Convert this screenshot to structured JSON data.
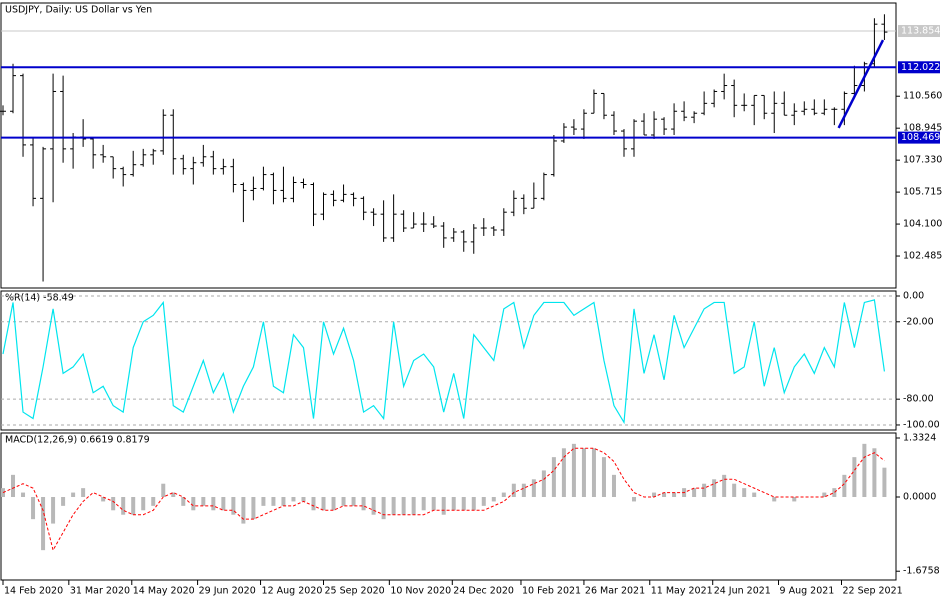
{
  "chart_data": [
    {
      "type": "ohlc",
      "title": "USDJPY, Daily:  US Dollar vs Yen",
      "color": "#000000",
      "x": [
        "2020-02-14",
        "2020-02-21",
        "2020-02-28",
        "2020-03-06",
        "2020-03-13",
        "2020-03-20",
        "2020-03-27",
        "2020-04-03",
        "2020-04-10",
        "2020-04-17",
        "2020-04-24",
        "2020-05-01",
        "2020-05-08",
        "2020-05-15",
        "2020-05-22",
        "2020-05-29",
        "2020-06-05",
        "2020-06-12",
        "2020-06-19",
        "2020-06-26",
        "2020-07-03",
        "2020-07-10",
        "2020-07-17",
        "2020-07-24",
        "2020-07-31",
        "2020-08-07",
        "2020-08-14",
        "2020-08-21",
        "2020-08-28",
        "2020-09-04",
        "2020-09-11",
        "2020-09-18",
        "2020-09-25",
        "2020-10-02",
        "2020-10-09",
        "2020-10-16",
        "2020-10-23",
        "2020-10-30",
        "2020-11-06",
        "2020-11-13",
        "2020-11-20",
        "2020-11-27",
        "2020-12-04",
        "2020-12-11",
        "2020-12-18",
        "2020-12-25",
        "2021-01-01",
        "2021-01-08",
        "2021-01-15",
        "2021-01-22",
        "2021-01-29",
        "2021-02-05",
        "2021-02-12",
        "2021-02-19",
        "2021-02-26",
        "2021-03-05",
        "2021-03-12",
        "2021-03-19",
        "2021-03-26",
        "2021-04-02",
        "2021-04-09",
        "2021-04-16",
        "2021-04-23",
        "2021-04-30",
        "2021-05-07",
        "2021-05-14",
        "2021-05-21",
        "2021-05-28",
        "2021-06-04",
        "2021-06-11",
        "2021-06-18",
        "2021-06-25",
        "2021-07-02",
        "2021-07-09",
        "2021-07-16",
        "2021-07-23",
        "2021-07-30",
        "2021-08-06",
        "2021-08-13",
        "2021-08-20",
        "2021-08-27",
        "2021-09-03",
        "2021-09-10",
        "2021-09-17",
        "2021-09-24",
        "2021-10-01",
        "2021-10-08",
        "2021-10-15",
        "2021-10-22"
      ],
      "open": [
        109.8,
        109.8,
        111.6,
        108.1,
        105.4,
        107.9,
        110.8,
        107.9,
        108.5,
        108.4,
        107.6,
        107.5,
        106.9,
        106.6,
        107.1,
        107.6,
        107.8,
        109.6,
        107.4,
        106.9,
        107.2,
        107.5,
        106.9,
        107.0,
        106.1,
        105.8,
        105.9,
        106.6,
        105.8,
        105.4,
        106.2,
        106.1,
        104.6,
        105.6,
        105.3,
        105.6,
        105.4,
        104.7,
        104.6,
        103.4,
        104.6,
        103.9,
        104.1,
        104.1,
        104.0,
        103.4,
        103.7,
        103.2,
        103.9,
        103.9,
        103.8,
        104.7,
        105.4,
        104.9,
        105.4,
        106.6,
        108.3,
        109.0,
        108.9,
        109.7,
        110.7,
        109.6,
        108.8,
        107.9,
        109.3,
        108.6,
        109.4,
        108.9,
        109.8,
        109.5,
        109.7,
        110.2,
        110.8,
        111.1,
        110.1,
        110.1,
        110.6,
        109.7,
        110.2,
        109.6,
        109.8,
        109.9,
        109.7,
        109.9,
        109.9,
        110.7,
        111.1,
        112.2,
        114.2
      ],
      "high": [
        110.1,
        112.2,
        111.7,
        108.5,
        108.0,
        111.7,
        111.6,
        108.7,
        109.4,
        108.5,
        108.1,
        107.5,
        107.0,
        107.8,
        107.9,
        107.9,
        109.9,
        109.9,
        107.6,
        107.5,
        108.1,
        107.8,
        107.4,
        107.4,
        106.2,
        106.5,
        107.0,
        106.7,
        107.0,
        106.5,
        106.4,
        106.2,
        105.7,
        105.8,
        106.1,
        105.7,
        105.5,
        104.9,
        105.3,
        105.6,
        104.8,
        104.7,
        104.7,
        104.5,
        104.2,
        103.9,
        103.8,
        104.1,
        104.4,
        104.0,
        104.9,
        105.8,
        105.6,
        106.2,
        106.7,
        108.6,
        109.2,
        109.4,
        109.9,
        110.9,
        110.7,
        109.8,
        108.9,
        109.4,
        109.7,
        109.8,
        109.5,
        110.2,
        110.3,
        109.8,
        110.8,
        110.9,
        111.7,
        111.4,
        110.7,
        110.6,
        110.6,
        110.8,
        110.8,
        110.2,
        110.3,
        110.4,
        110.4,
        110.0,
        110.8,
        112.1,
        112.3,
        114.5,
        114.7
      ],
      "low": [
        109.6,
        109.7,
        107.5,
        105.0,
        101.2,
        105.2,
        107.2,
        106.9,
        108.0,
        106.9,
        107.2,
        106.4,
        106.0,
        106.5,
        107.0,
        107.1,
        107.6,
        106.6,
        106.6,
        106.1,
        107.0,
        106.6,
        106.6,
        105.7,
        104.2,
        105.3,
        105.8,
        105.1,
        105.2,
        105.2,
        105.9,
        104.0,
        104.3,
        105.0,
        105.2,
        105.0,
        104.3,
        104.0,
        103.2,
        103.2,
        103.7,
        103.9,
        103.7,
        103.9,
        102.9,
        103.2,
        102.7,
        102.6,
        103.5,
        103.5,
        103.5,
        104.5,
        104.6,
        104.9,
        105.3,
        106.5,
        108.2,
        108.6,
        108.4,
        109.7,
        109.4,
        108.6,
        107.5,
        107.5,
        108.6,
        108.4,
        108.6,
        108.6,
        109.3,
        109.2,
        109.6,
        110.0,
        110.4,
        109.5,
        109.8,
        109.1,
        109.4,
        108.7,
        109.6,
        109.1,
        109.6,
        109.6,
        109.6,
        109.1,
        109.1,
        110.6,
        110.8,
        112.0,
        113.4
      ],
      "close": [
        109.8,
        111.6,
        108.1,
        105.4,
        107.9,
        110.8,
        107.9,
        108.5,
        108.4,
        107.6,
        107.5,
        106.9,
        106.6,
        107.1,
        107.6,
        107.8,
        109.6,
        107.4,
        106.9,
        107.2,
        107.5,
        106.9,
        107.0,
        106.1,
        105.8,
        105.9,
        106.6,
        105.8,
        105.4,
        106.2,
        106.1,
        104.6,
        105.6,
        105.3,
        105.6,
        105.4,
        104.7,
        104.6,
        103.4,
        104.6,
        103.9,
        104.1,
        104.1,
        104.0,
        103.4,
        103.7,
        103.2,
        103.9,
        103.9,
        103.8,
        104.7,
        105.4,
        104.9,
        105.4,
        106.6,
        108.3,
        109.0,
        108.9,
        109.7,
        110.7,
        109.6,
        108.8,
        107.9,
        109.3,
        108.6,
        109.4,
        108.9,
        109.8,
        109.5,
        109.7,
        110.2,
        110.8,
        111.1,
        110.1,
        110.1,
        110.6,
        109.7,
        110.2,
        109.6,
        109.8,
        109.9,
        109.7,
        109.9,
        109.9,
        110.7,
        111.1,
        112.2,
        114.2,
        113.8
      ],
      "xlim": [
        "2020-02-14",
        "2021-10-28"
      ],
      "xticks": [
        {
          "value": "2020-02-14",
          "label": "14 Feb 2020"
        },
        {
          "value": "2020-03-31",
          "label": "31 Mar 2020"
        },
        {
          "value": "2020-05-14",
          "label": "14 May 2020"
        },
        {
          "value": "2020-06-29",
          "label": "29 Jun 2020"
        },
        {
          "value": "2020-08-12",
          "label": "12 Aug 2020"
        },
        {
          "value": "2020-09-25",
          "label": "25 Sep 2020"
        },
        {
          "value": "2020-11-10",
          "label": "10 Nov 2020"
        },
        {
          "value": "2020-12-24",
          "label": "24 Dec 2020"
        },
        {
          "value": "2021-02-10",
          "label": "10 Feb 2021"
        },
        {
          "value": "2021-03-26",
          "label": "26 Mar 2021"
        },
        {
          "value": "2021-05-11",
          "label": "11 May 2021"
        },
        {
          "value": "2021-06-24",
          "label": "24 Jun 2021"
        },
        {
          "value": "2021-08-09",
          "label": "9 Aug 2021"
        },
        {
          "value": "2021-09-22",
          "label": "22 Sep 2021"
        }
      ],
      "ylim": [
        100.87,
        115.27
      ],
      "yticks": [
        102.485,
        {
          "value": 104.1,
          "label": "104.100"
        },
        105.715,
        {
          "value": 107.33,
          "label": "107.330"
        },
        108.945,
        {
          "value": 110.56,
          "label": "110.560"
        }
      ],
      "levels": [
        {
          "value": 112.022,
          "color": "#0000cc"
        },
        {
          "value": 108.469,
          "color": "#0000cc"
        }
      ],
      "last_price": 113.854,
      "last_price_color": "#c8c8c8",
      "trendline": {
        "x": [
          "2021-09-20",
          "2021-10-21"
        ],
        "y": [
          108.96,
          113.4
        ],
        "color": "#0000cc"
      }
    },
    {
      "type": "line",
      "title": "%R(14) -58.49",
      "color": "#00e5ee",
      "grid": "dashed",
      "values": [
        -45,
        -5,
        -90,
        -95,
        -55,
        -10,
        -60,
        -55,
        -45,
        -75,
        -70,
        -85,
        -90,
        -40,
        -20,
        -15,
        -5,
        -85,
        -90,
        -70,
        -50,
        -75,
        -60,
        -90,
        -70,
        -55,
        -20,
        -70,
        -75,
        -30,
        -40,
        -95,
        -20,
        -45,
        -25,
        -50,
        -90,
        -85,
        -95,
        -20,
        -70,
        -50,
        -45,
        -55,
        -90,
        -60,
        -95,
        -30,
        -40,
        -50,
        -10,
        -5,
        -40,
        -15,
        -5,
        -5,
        -5,
        -15,
        -10,
        -5,
        -50,
        -85,
        -98,
        -10,
        -60,
        -30,
        -65,
        -15,
        -40,
        -25,
        -10,
        -5,
        -5,
        -60,
        -55,
        -20,
        -70,
        -40,
        -75,
        -55,
        -45,
        -60,
        -40,
        -55,
        -5,
        -40,
        -5,
        -3,
        -58.49
      ],
      "ylim": [
        -103.9,
        3.88
      ],
      "yticks": [
        {
          "value": 0,
          "label": "0.00"
        },
        {
          "value": -20,
          "label": "-20.00"
        },
        {
          "value": -80,
          "label": "-80.00"
        },
        {
          "value": -100,
          "label": "-100.00"
        }
      ]
    },
    {
      "type": "macd",
      "title": "MACD(12,26,9) 0.6619 0.8179",
      "histogram": {
        "color": "#b8b8b8",
        "values": [
          0.2,
          0.5,
          0.1,
          -0.5,
          -1.2,
          -0.6,
          -0.2,
          0.1,
          0.2,
          0.0,
          -0.1,
          -0.3,
          -0.4,
          -0.4,
          -0.3,
          -0.2,
          0.3,
          0.1,
          -0.2,
          -0.3,
          -0.2,
          -0.3,
          -0.3,
          -0.4,
          -0.6,
          -0.5,
          -0.2,
          -0.2,
          -0.2,
          -0.1,
          -0.1,
          -0.3,
          -0.3,
          -0.3,
          -0.2,
          -0.2,
          -0.3,
          -0.4,
          -0.5,
          -0.4,
          -0.4,
          -0.4,
          -0.3,
          -0.3,
          -0.4,
          -0.3,
          -0.3,
          -0.3,
          -0.2,
          -0.1,
          0.1,
          0.3,
          0.3,
          0.4,
          0.6,
          0.9,
          1.1,
          1.2,
          1.1,
          1.1,
          0.9,
          0.5,
          0.0,
          -0.1,
          0.0,
          0.1,
          0.1,
          0.1,
          0.2,
          0.2,
          0.3,
          0.4,
          0.5,
          0.3,
          0.2,
          0.1,
          0.0,
          -0.1,
          0.0,
          -0.1,
          0.0,
          0.0,
          0.1,
          0.2,
          0.5,
          0.9,
          1.2,
          1.1,
          0.6619
        ]
      },
      "signal": {
        "color": "#ff0000",
        "values": [
          0.1,
          0.2,
          0.3,
          0.2,
          -0.3,
          -1.2,
          -0.8,
          -0.4,
          -0.1,
          0.1,
          0.0,
          -0.1,
          -0.3,
          -0.4,
          -0.4,
          -0.3,
          0.0,
          0.1,
          0.0,
          -0.2,
          -0.2,
          -0.2,
          -0.3,
          -0.3,
          -0.5,
          -0.5,
          -0.4,
          -0.3,
          -0.2,
          -0.2,
          -0.1,
          -0.2,
          -0.3,
          -0.3,
          -0.2,
          -0.2,
          -0.2,
          -0.3,
          -0.4,
          -0.4,
          -0.4,
          -0.4,
          -0.4,
          -0.3,
          -0.3,
          -0.3,
          -0.3,
          -0.3,
          -0.3,
          -0.2,
          -0.1,
          0.1,
          0.2,
          0.3,
          0.4,
          0.6,
          0.9,
          1.1,
          1.1,
          1.1,
          1.0,
          0.8,
          0.4,
          0.1,
          0.0,
          0.0,
          0.1,
          0.1,
          0.1,
          0.2,
          0.2,
          0.3,
          0.4,
          0.4,
          0.3,
          0.2,
          0.1,
          0.0,
          0.0,
          0.0,
          0.0,
          0.0,
          0.0,
          0.1,
          0.3,
          0.6,
          0.9,
          1.0,
          0.8179
        ]
      },
      "ylim": [
        -1.874,
        1.445
      ],
      "yticks": [
        1.3324,
        {
          "value": 0,
          "label": "0.0000"
        },
        -1.6758
      ]
    }
  ]
}
